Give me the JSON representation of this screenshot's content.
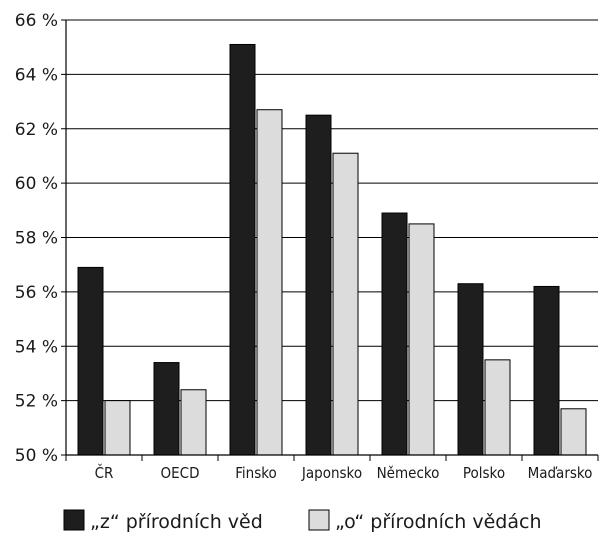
{
  "chart_data": {
    "type": "bar",
    "title": "",
    "xlabel": "",
    "ylabel": "",
    "categories": [
      "ČR",
      "OECD",
      "Finsko",
      "Japonsko",
      "Německo",
      "Polsko",
      "Maďarsko"
    ],
    "series": [
      {
        "name": "„z“ přírodních věd",
        "values": [
          56.9,
          53.4,
          65.1,
          62.5,
          58.9,
          56.3,
          56.2
        ],
        "color": "#1e1e1e"
      },
      {
        "name": "„o“ přírodních vědách",
        "values": [
          52.0,
          52.4,
          62.7,
          61.1,
          58.5,
          53.5,
          51.7
        ],
        "color": "#dcdcdc"
      }
    ],
    "ylim": [
      50,
      66
    ],
    "yticks": [
      50,
      52,
      54,
      56,
      58,
      60,
      62,
      64,
      66
    ],
    "ytick_labels": [
      "50 %",
      "52 %",
      "54 %",
      "56 %",
      "58 %",
      "60 %",
      "62 %",
      "64 %",
      "66 %"
    ],
    "grid": true,
    "legend_position": "bottom"
  }
}
